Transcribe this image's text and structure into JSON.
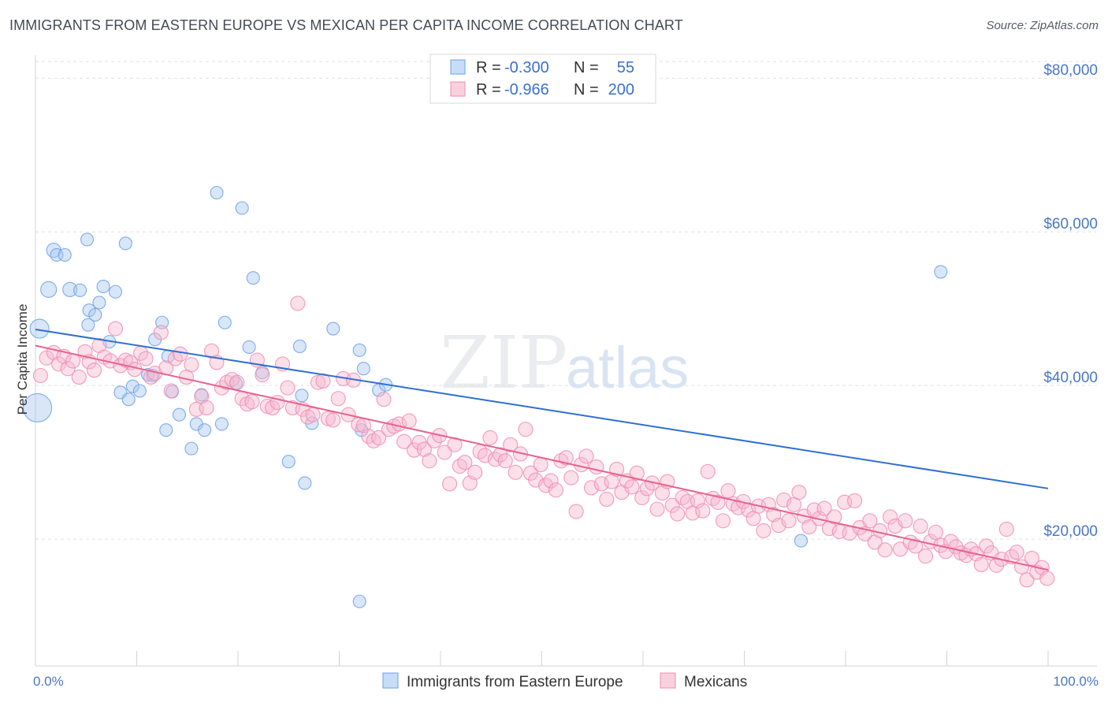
{
  "title": "IMMIGRANTS FROM EASTERN EUROPE VS MEXICAN PER CAPITA INCOME CORRELATION CHART",
  "source": "Source: ZipAtlas.com",
  "watermark": {
    "zip": "ZIP",
    "atlas": "atlas"
  },
  "legend_top": {
    "rows": [
      {
        "r_label": "R =",
        "r_value": "-0.300",
        "n_label": "N =",
        "n_value": "55",
        "color": "#6aa0e6"
      },
      {
        "r_label": "R =",
        "r_value": "-0.966",
        "n_label": "N =",
        "n_value": "200",
        "color": "#f08bb0"
      }
    ]
  },
  "chart_data": {
    "type": "scatter",
    "xlabel": "",
    "ylabel": "Per Capita Income",
    "xlim": [
      0,
      100
    ],
    "ylim": [
      3500,
      83000
    ],
    "x_tick_labels": {
      "left": "0.0%",
      "right": "100.0%"
    },
    "y_ticks": [
      {
        "value": 20000,
        "label": "$20,000"
      },
      {
        "value": 40000,
        "label": "$40,000"
      },
      {
        "value": 60000,
        "label": "$60,000"
      },
      {
        "value": 80000,
        "label": "$80,000"
      }
    ],
    "grid": true,
    "series": [
      {
        "name": "Immigrants from Eastern Europe",
        "color": "#6aa0e6",
        "trend": {
          "x0": 0,
          "y0": 47300,
          "x1": 100,
          "y1": 26600,
          "color": "#2f6fd1"
        },
        "points": [
          [
            0.2,
            37100,
            18
          ],
          [
            0.4,
            47400,
            12
          ],
          [
            1.3,
            52500,
            10
          ],
          [
            1.8,
            57600,
            9
          ],
          [
            2.1,
            57000,
            8
          ],
          [
            2.9,
            57000,
            8
          ],
          [
            3.4,
            52500,
            9
          ],
          [
            4.4,
            52400,
            8
          ],
          [
            5.1,
            59000,
            8
          ],
          [
            5.2,
            47900,
            8
          ],
          [
            5.3,
            49800,
            8
          ],
          [
            5.9,
            49200,
            8
          ],
          [
            6.3,
            50800,
            8
          ],
          [
            6.7,
            52900,
            8
          ],
          [
            7.3,
            45700,
            8
          ],
          [
            7.9,
            52200,
            8
          ],
          [
            8.4,
            39100,
            8
          ],
          [
            8.9,
            58500,
            8
          ],
          [
            9.2,
            38200,
            8
          ],
          [
            9.6,
            39900,
            8
          ],
          [
            10.3,
            39300,
            8
          ],
          [
            11.1,
            41400,
            8
          ],
          [
            11.6,
            41300,
            8
          ],
          [
            11.8,
            46000,
            8
          ],
          [
            12.5,
            48200,
            8
          ],
          [
            12.9,
            34200,
            8
          ],
          [
            13.1,
            43800,
            8
          ],
          [
            13.5,
            39200,
            8
          ],
          [
            14.2,
            36200,
            8
          ],
          [
            15.4,
            31800,
            8
          ],
          [
            15.9,
            35000,
            8
          ],
          [
            16.4,
            38800,
            8
          ],
          [
            16.7,
            34200,
            8
          ],
          [
            17.9,
            65100,
            8
          ],
          [
            18.4,
            35000,
            8
          ],
          [
            18.7,
            48200,
            8
          ],
          [
            19.8,
            40300,
            8
          ],
          [
            20.4,
            63100,
            8
          ],
          [
            21.1,
            45000,
            8
          ],
          [
            21.5,
            54000,
            8
          ],
          [
            22.4,
            41700,
            8
          ],
          [
            25.0,
            30100,
            8
          ],
          [
            26.1,
            45100,
            8
          ],
          [
            26.3,
            38700,
            8
          ],
          [
            26.6,
            27300,
            8
          ],
          [
            27.3,
            35100,
            8
          ],
          [
            29.4,
            47400,
            8
          ],
          [
            32.0,
            44600,
            8
          ],
          [
            32.4,
            42200,
            8
          ],
          [
            32.2,
            34200,
            8
          ],
          [
            33.9,
            39400,
            8
          ],
          [
            34.6,
            40100,
            8
          ],
          [
            32.0,
            11900,
            8
          ],
          [
            75.6,
            19800,
            8
          ],
          [
            89.4,
            54800,
            8
          ]
        ]
      },
      {
        "name": "Mexicans",
        "color": "#f08bb0",
        "trend": {
          "x0": 0,
          "y0": 45200,
          "x1": 100,
          "y1": 16000,
          "color": "#e5648f"
        },
        "points": [
          [
            0.5,
            41300
          ],
          [
            1.1,
            43600
          ],
          [
            1.8,
            44300
          ],
          [
            2.3,
            42800
          ],
          [
            2.8,
            43800
          ],
          [
            3.2,
            42200
          ],
          [
            3.7,
            43200
          ],
          [
            4.3,
            41100
          ],
          [
            4.9,
            44400
          ],
          [
            5.3,
            43100
          ],
          [
            5.8,
            42000
          ],
          [
            6.3,
            45200
          ],
          [
            6.8,
            43700
          ],
          [
            7.4,
            43200
          ],
          [
            7.9,
            47400
          ],
          [
            8.4,
            42600
          ],
          [
            8.9,
            43300
          ],
          [
            9.4,
            43000
          ],
          [
            9.8,
            42100
          ],
          [
            10.4,
            44200
          ],
          [
            10.9,
            43500
          ],
          [
            11.4,
            41100
          ],
          [
            11.8,
            41600
          ],
          [
            12.4,
            46900
          ],
          [
            12.9,
            42300
          ],
          [
            13.4,
            39300
          ],
          [
            13.8,
            43500
          ],
          [
            14.3,
            44100
          ],
          [
            14.9,
            41100
          ],
          [
            15.4,
            42700
          ],
          [
            15.9,
            36900
          ],
          [
            16.4,
            38600
          ],
          [
            16.9,
            37100
          ],
          [
            17.4,
            44500
          ],
          [
            17.9,
            43000
          ],
          [
            18.4,
            39700
          ],
          [
            18.9,
            40400
          ],
          [
            19.4,
            40800
          ],
          [
            19.9,
            40400
          ],
          [
            20.4,
            38300
          ],
          [
            20.9,
            37600
          ],
          [
            21.4,
            37900
          ],
          [
            21.9,
            43300
          ],
          [
            22.4,
            41400
          ],
          [
            22.9,
            37300
          ],
          [
            23.4,
            37100
          ],
          [
            23.9,
            37800
          ],
          [
            24.4,
            42800
          ],
          [
            24.9,
            39700
          ],
          [
            25.4,
            37100
          ],
          [
            25.9,
            50700
          ],
          [
            26.4,
            36900
          ],
          [
            26.9,
            35900
          ],
          [
            27.4,
            36200
          ],
          [
            27.9,
            40400
          ],
          [
            28.4,
            40600
          ],
          [
            28.9,
            35700
          ],
          [
            29.4,
            35500
          ],
          [
            29.9,
            38300
          ],
          [
            30.4,
            40900
          ],
          [
            30.9,
            36200
          ],
          [
            31.4,
            40700
          ],
          [
            31.9,
            34900
          ],
          [
            32.4,
            34800
          ],
          [
            32.9,
            33400
          ],
          [
            33.4,
            32800
          ],
          [
            33.9,
            33200
          ],
          [
            34.4,
            38200
          ],
          [
            34.9,
            34300
          ],
          [
            35.4,
            34700
          ],
          [
            35.9,
            35000
          ],
          [
            36.4,
            32700
          ],
          [
            36.9,
            35400
          ],
          [
            37.4,
            31600
          ],
          [
            37.9,
            32600
          ],
          [
            38.4,
            31700
          ],
          [
            38.9,
            30200
          ],
          [
            39.4,
            32800
          ],
          [
            39.9,
            33500
          ],
          [
            40.4,
            31300
          ],
          [
            40.9,
            27200
          ],
          [
            41.4,
            32300
          ],
          [
            41.9,
            29500
          ],
          [
            42.4,
            30000
          ],
          [
            42.9,
            27300
          ],
          [
            43.4,
            28700
          ],
          [
            43.9,
            31400
          ],
          [
            44.4,
            30900
          ],
          [
            44.9,
            33200
          ],
          [
            45.4,
            30400
          ],
          [
            45.9,
            31000
          ],
          [
            46.4,
            30200
          ],
          [
            46.9,
            32300
          ],
          [
            47.4,
            28700
          ],
          [
            47.9,
            31100
          ],
          [
            48.4,
            34300
          ],
          [
            48.9,
            28600
          ],
          [
            49.4,
            27700
          ],
          [
            49.9,
            29700
          ],
          [
            50.4,
            27000
          ],
          [
            50.9,
            27600
          ],
          [
            51.4,
            26400
          ],
          [
            51.9,
            30200
          ],
          [
            52.4,
            30600
          ],
          [
            52.9,
            28000
          ],
          [
            53.4,
            23600
          ],
          [
            53.9,
            29700
          ],
          [
            54.4,
            30800
          ],
          [
            54.9,
            26700
          ],
          [
            55.4,
            29400
          ],
          [
            55.9,
            27200
          ],
          [
            56.4,
            25200
          ],
          [
            56.9,
            27500
          ],
          [
            57.4,
            29100
          ],
          [
            57.9,
            26100
          ],
          [
            58.4,
            27600
          ],
          [
            58.9,
            26800
          ],
          [
            59.4,
            28600
          ],
          [
            59.9,
            25400
          ],
          [
            60.4,
            26600
          ],
          [
            60.9,
            27300
          ],
          [
            61.4,
            23900
          ],
          [
            61.9,
            26000
          ],
          [
            62.4,
            27500
          ],
          [
            62.9,
            24400
          ],
          [
            63.4,
            23300
          ],
          [
            63.9,
            25400
          ],
          [
            64.4,
            24900
          ],
          [
            64.9,
            23400
          ],
          [
            65.4,
            25000
          ],
          [
            65.9,
            23700
          ],
          [
            66.4,
            28800
          ],
          [
            66.9,
            25300
          ],
          [
            67.4,
            24800
          ],
          [
            67.9,
            22400
          ],
          [
            68.4,
            26300
          ],
          [
            68.9,
            24600
          ],
          [
            69.4,
            24100
          ],
          [
            69.9,
            24900
          ],
          [
            70.4,
            23800
          ],
          [
            70.9,
            22700
          ],
          [
            71.4,
            24300
          ],
          [
            71.9,
            21100
          ],
          [
            72.4,
            24500
          ],
          [
            72.9,
            23200
          ],
          [
            73.4,
            21800
          ],
          [
            73.9,
            25100
          ],
          [
            74.4,
            22400
          ],
          [
            74.9,
            24500
          ],
          [
            75.4,
            26100
          ],
          [
            75.9,
            23000
          ],
          [
            76.4,
            21600
          ],
          [
            76.9,
            23800
          ],
          [
            77.4,
            22700
          ],
          [
            77.9,
            24000
          ],
          [
            78.4,
            21400
          ],
          [
            78.9,
            22900
          ],
          [
            79.4,
            21000
          ],
          [
            79.9,
            24800
          ],
          [
            80.4,
            20800
          ],
          [
            80.9,
            25000
          ],
          [
            81.4,
            21500
          ],
          [
            81.9,
            20700
          ],
          [
            82.4,
            22400
          ],
          [
            82.9,
            19600
          ],
          [
            83.4,
            21100
          ],
          [
            83.9,
            18600
          ],
          [
            84.4,
            22900
          ],
          [
            84.9,
            21700
          ],
          [
            85.4,
            18700
          ],
          [
            85.9,
            22400
          ],
          [
            86.4,
            19600
          ],
          [
            86.9,
            19100
          ],
          [
            87.4,
            21700
          ],
          [
            87.9,
            17800
          ],
          [
            88.4,
            19700
          ],
          [
            88.9,
            20900
          ],
          [
            89.4,
            19200
          ],
          [
            89.9,
            18400
          ],
          [
            90.4,
            19700
          ],
          [
            90.9,
            19000
          ],
          [
            91.4,
            18200
          ],
          [
            91.9,
            17900
          ],
          [
            92.4,
            18700
          ],
          [
            92.9,
            18100
          ],
          [
            93.4,
            16700
          ],
          [
            93.9,
            19100
          ],
          [
            94.4,
            18200
          ],
          [
            94.9,
            16600
          ],
          [
            95.4,
            17400
          ],
          [
            95.9,
            21300
          ],
          [
            96.4,
            17700
          ],
          [
            96.9,
            18300
          ],
          [
            97.4,
            16400
          ],
          [
            97.9,
            14700
          ],
          [
            98.4,
            17500
          ],
          [
            98.9,
            15700
          ],
          [
            99.4,
            16300
          ],
          [
            99.9,
            14900
          ]
        ]
      }
    ]
  },
  "legend_bottom": [
    {
      "label": "Immigrants from Eastern Europe",
      "color": "#6aa0e6"
    },
    {
      "label": "Mexicans",
      "color": "#f08bb0"
    }
  ]
}
